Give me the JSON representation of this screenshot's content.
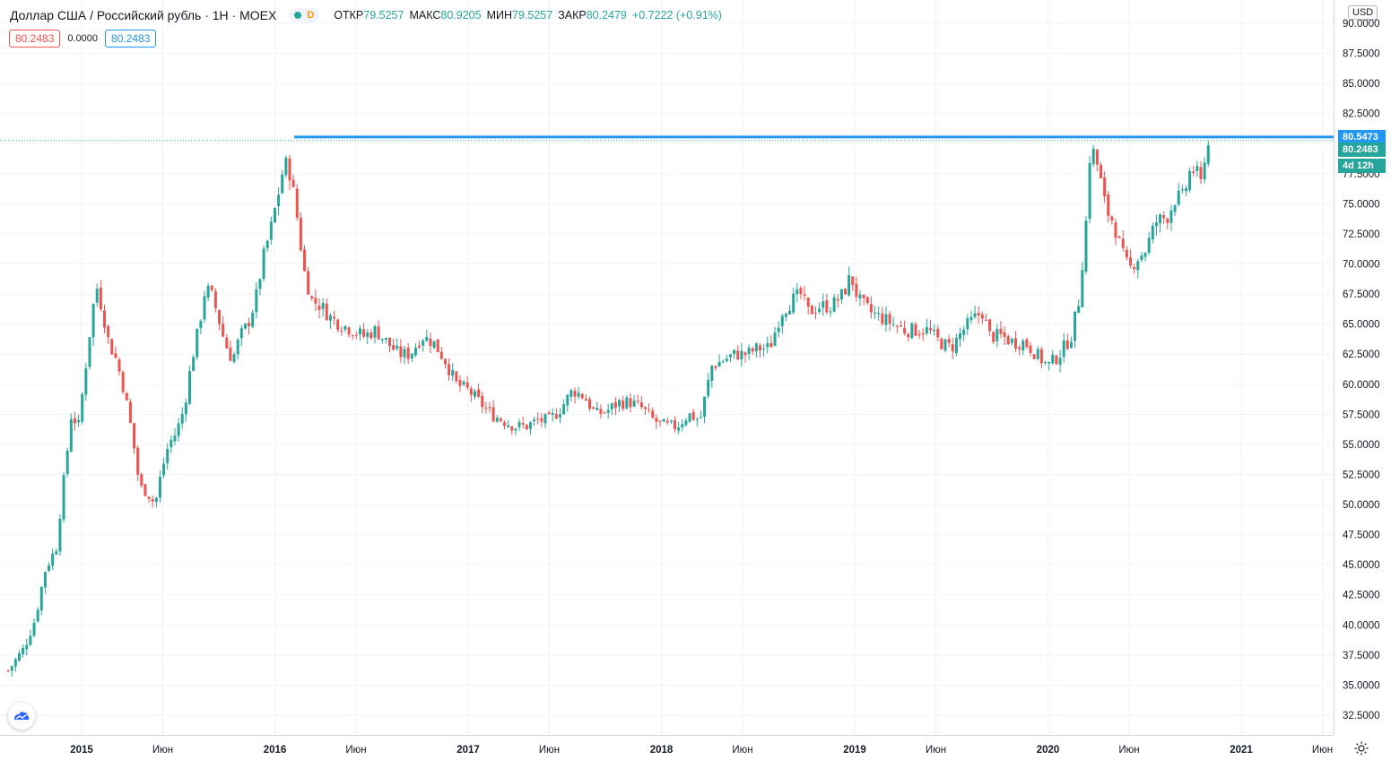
{
  "legend": {
    "symbol": "Доллар США / Российский рубль · 1H · MOEX",
    "delay_badge": "D",
    "open_label": "ОТКР",
    "open": "79.5257",
    "high_label": "МАКС",
    "high": "80.9205",
    "low_label": "МИН",
    "low": "79.5257",
    "close_label": "ЗАКР",
    "close": "80.2479",
    "change": "+0.7222 (+0.91%)"
  },
  "indicator": {
    "value1": "80.2483",
    "value2": "0.0000",
    "value3": "80.2483"
  },
  "currency_button": "USD",
  "price_tags": {
    "line_level": "80.5473",
    "last_price": "80.2483",
    "countdown": "4d 12h"
  },
  "colors": {
    "up": "#26a69a",
    "down": "#ef5350",
    "line": "#2196f3",
    "grid": "#f0f3fa",
    "axis_text": "#131722"
  },
  "icons": {
    "logo": "tradingview-logo-icon",
    "settings": "gear-icon"
  },
  "chart_data": {
    "type": "candlestick",
    "title": "Доллар США / Российский рубль · 1H · MOEX",
    "ylim": [
      30.8,
      91.5
    ],
    "y_ticks": [
      "32.5000",
      "35.0000",
      "37.5000",
      "40.0000",
      "42.5000",
      "45.0000",
      "47.5000",
      "50.0000",
      "52.5000",
      "55.0000",
      "57.5000",
      "60.0000",
      "62.5000",
      "65.0000",
      "67.5000",
      "70.0000",
      "72.5000",
      "75.0000",
      "77.5000",
      "80.0000",
      "82.5000",
      "85.0000",
      "87.5000",
      "90.0000"
    ],
    "x_ticks": [
      {
        "label": "2015",
        "t": 2015.0
      },
      {
        "label": "Июн",
        "t": 2015.42
      },
      {
        "label": "2016",
        "t": 2016.0
      },
      {
        "label": "Июн",
        "t": 2016.42
      },
      {
        "label": "2017",
        "t": 2017.0
      },
      {
        "label": "Июн",
        "t": 2017.42
      },
      {
        "label": "2018",
        "t": 2018.0
      },
      {
        "label": "Июн",
        "t": 2018.42
      },
      {
        "label": "2019",
        "t": 2019.0
      },
      {
        "label": "Июн",
        "t": 2019.42
      },
      {
        "label": "2020",
        "t": 2020.0
      },
      {
        "label": "Июн",
        "t": 2020.42
      },
      {
        "label": "2021",
        "t": 2021.0
      },
      {
        "label": "Июн",
        "t": 2021.42
      }
    ],
    "x_range": [
      2014.61,
      2021.42
    ],
    "horizontal_line": 80.5473,
    "last_price_line": 80.2483,
    "close_path": [
      [
        2014.62,
        36.2
      ],
      [
        2014.7,
        38.0
      ],
      [
        2014.76,
        40.5
      ],
      [
        2014.81,
        44.5
      ],
      [
        2014.87,
        46.5
      ],
      [
        2014.9,
        51.0
      ],
      [
        2014.93,
        55.0
      ],
      [
        2014.95,
        58.0
      ],
      [
        2014.98,
        56.0
      ],
      [
        2015.01,
        60.0
      ],
      [
        2015.04,
        64.0
      ],
      [
        2015.06,
        66.5
      ],
      [
        2015.08,
        68.0
      ],
      [
        2015.11,
        66.0
      ],
      [
        2015.14,
        63.5
      ],
      [
        2015.18,
        62.0
      ],
      [
        2015.22,
        59.5
      ],
      [
        2015.26,
        56.0
      ],
      [
        2015.3,
        51.5
      ],
      [
        2015.34,
        51.0
      ],
      [
        2015.38,
        50.0
      ],
      [
        2015.41,
        52.5
      ],
      [
        2015.45,
        55.0
      ],
      [
        2015.49,
        56.0
      ],
      [
        2015.53,
        58.0
      ],
      [
        2015.57,
        62.0
      ],
      [
        2015.61,
        65.0
      ],
      [
        2015.64,
        68.0
      ],
      [
        2015.67,
        67.5
      ],
      [
        2015.7,
        66.0
      ],
      [
        2015.74,
        63.5
      ],
      [
        2015.78,
        62.0
      ],
      [
        2015.82,
        64.0
      ],
      [
        2015.86,
        65.0
      ],
      [
        2015.9,
        67.0
      ],
      [
        2015.94,
        70.5
      ],
      [
        2015.98,
        73.0
      ],
      [
        2016.02,
        76.0
      ],
      [
        2016.05,
        78.5
      ],
      [
        2016.08,
        77.5
      ],
      [
        2016.11,
        74.5
      ],
      [
        2016.15,
        69.5
      ],
      [
        2016.19,
        67.0
      ],
      [
        2016.24,
        66.5
      ],
      [
        2016.29,
        65.5
      ],
      [
        2016.34,
        65.0
      ],
      [
        2016.4,
        64.5
      ],
      [
        2016.46,
        64.0
      ],
      [
        2016.52,
        64.5
      ],
      [
        2016.58,
        63.5
      ],
      [
        2016.64,
        62.5
      ],
      [
        2016.7,
        62.5
      ],
      [
        2016.76,
        64.0
      ],
      [
        2016.82,
        63.5
      ],
      [
        2016.88,
        62.0
      ],
      [
        2016.94,
        60.0
      ],
      [
        2017.0,
        59.5
      ],
      [
        2017.06,
        58.5
      ],
      [
        2017.12,
        57.5
      ],
      [
        2017.18,
        57.0
      ],
      [
        2017.24,
        56.5
      ],
      [
        2017.3,
        56.5
      ],
      [
        2017.36,
        57.0
      ],
      [
        2017.42,
        57.0
      ],
      [
        2017.48,
        58.0
      ],
      [
        2017.54,
        59.5
      ],
      [
        2017.6,
        59.0
      ],
      [
        2017.66,
        57.5
      ],
      [
        2017.72,
        57.8
      ],
      [
        2017.78,
        58.5
      ],
      [
        2017.84,
        58.5
      ],
      [
        2017.9,
        58.0
      ],
      [
        2017.96,
        57.0
      ],
      [
        2018.02,
        56.5
      ],
      [
        2018.08,
        56.5
      ],
      [
        2018.14,
        57.5
      ],
      [
        2018.2,
        57.0
      ],
      [
        2018.26,
        61.5
      ],
      [
        2018.32,
        62.0
      ],
      [
        2018.38,
        62.5
      ],
      [
        2018.44,
        62.5
      ],
      [
        2018.5,
        63.0
      ],
      [
        2018.56,
        63.0
      ],
      [
        2018.62,
        66.0
      ],
      [
        2018.68,
        67.0
      ],
      [
        2018.72,
        67.5
      ],
      [
        2018.76,
        66.0
      ],
      [
        2018.82,
        66.5
      ],
      [
        2018.88,
        66.5
      ],
      [
        2018.94,
        67.5
      ],
      [
        2018.98,
        69.0
      ],
      [
        2019.02,
        67.0
      ],
      [
        2019.08,
        66.0
      ],
      [
        2019.14,
        65.5
      ],
      [
        2019.2,
        65.0
      ],
      [
        2019.26,
        64.5
      ],
      [
        2019.32,
        64.5
      ],
      [
        2019.38,
        64.5
      ],
      [
        2019.44,
        63.5
      ],
      [
        2019.5,
        63.0
      ],
      [
        2019.56,
        64.5
      ],
      [
        2019.62,
        65.5
      ],
      [
        2019.66,
        66.0
      ],
      [
        2019.7,
        64.0
      ],
      [
        2019.76,
        64.0
      ],
      [
        2019.82,
        63.5
      ],
      [
        2019.88,
        63.5
      ],
      [
        2019.94,
        62.5
      ],
      [
        2020.0,
        61.5
      ],
      [
        2020.06,
        62.5
      ],
      [
        2020.12,
        64.0
      ],
      [
        2020.16,
        67.0
      ],
      [
        2020.2,
        74.0
      ],
      [
        2020.22,
        80.0
      ],
      [
        2020.26,
        78.0
      ],
      [
        2020.3,
        74.5
      ],
      [
        2020.34,
        73.5
      ],
      [
        2020.38,
        71.0
      ],
      [
        2020.42,
        69.5
      ],
      [
        2020.46,
        70.5
      ],
      [
        2020.5,
        71.0
      ],
      [
        2020.56,
        73.5
      ],
      [
        2020.62,
        74.0
      ],
      [
        2020.66,
        75.5
      ],
      [
        2020.7,
        75.5
      ],
      [
        2020.74,
        78.0
      ],
      [
        2020.77,
        77.5
      ],
      [
        2020.79,
        76.5
      ],
      [
        2020.81,
        79.0
      ],
      [
        2020.84,
        80.25
      ]
    ]
  }
}
